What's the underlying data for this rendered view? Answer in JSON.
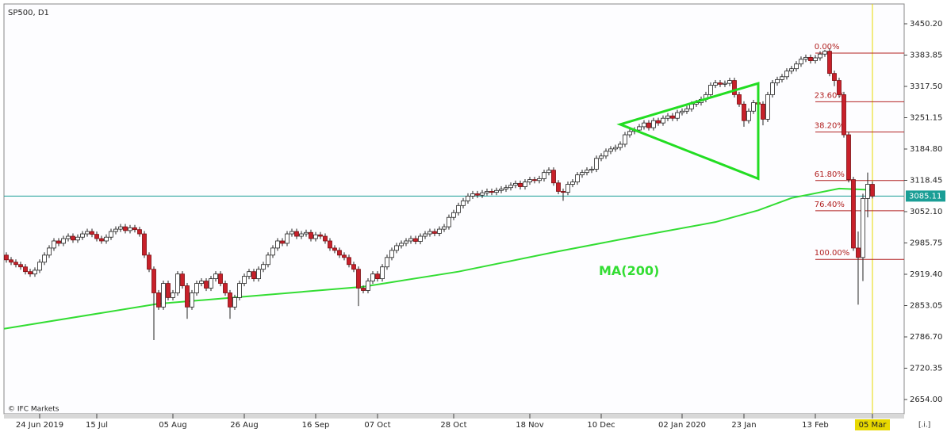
{
  "chart_data": {
    "type": "candlestick",
    "title": "SP500, D1",
    "source": "© IFC Markets",
    "corner_label": "[.i.]",
    "xlim": [
      -0.5,
      188.67
    ],
    "xticks": [
      {
        "value": 7,
        "label": "24 Jun 2019"
      },
      {
        "value": 19,
        "label": "15 Jul"
      },
      {
        "value": 35,
        "label": "05 Aug"
      },
      {
        "value": 50,
        "label": "26 Aug"
      },
      {
        "value": 65,
        "label": "16 Sep"
      },
      {
        "value": 78,
        "label": "07 Oct"
      },
      {
        "value": 94,
        "label": "28 Oct"
      },
      {
        "value": 110,
        "label": "18 Nov"
      },
      {
        "value": 125,
        "label": "10 Dec"
      },
      {
        "value": 142,
        "label": "02 Jan 2020"
      },
      {
        "value": 155,
        "label": "23 Jan"
      },
      {
        "value": 170,
        "label": "13 Feb"
      },
      {
        "value": 182,
        "label": "05 Mar"
      }
    ],
    "ylim": [
      2623.8,
      3492.2
    ],
    "yticks": [
      {
        "value": 3450.2,
        "label": "3450.20"
      },
      3383.85,
      {
        "value": 3317.5,
        "label": "3317.50"
      },
      3251.15,
      {
        "value": 3184.8,
        "label": "3184.80"
      },
      3118.45,
      {
        "value": 3052.1,
        "label": "3052.10"
      },
      2985.75,
      {
        "value": 2919.4,
        "label": "2919.40"
      },
      2853.05,
      {
        "value": 2786.7,
        "label": "2786.70"
      },
      2720.35,
      {
        "value": 2654,
        "label": "2654.00"
      }
    ],
    "open": [
      2960,
      2950,
      2945,
      2940,
      2935,
      2925,
      2920,
      2928,
      2945,
      2960,
      2975,
      2990,
      2985,
      2995,
      3000,
      2992,
      2998,
      3005,
      3010,
      3004,
      2995,
      2990,
      2998,
      3010,
      3015,
      3020,
      3012,
      3018,
      3014,
      3005,
      2960,
      2930,
      2880,
      2850,
      2900,
      2870,
      2880,
      2920,
      2895,
      2850,
      2880,
      2900,
      2905,
      2890,
      2910,
      2920,
      2900,
      2880,
      2850,
      2870,
      2900,
      2915,
      2925,
      2910,
      2930,
      2940,
      2960,
      2975,
      2990,
      2985,
      3005,
      3010,
      3000,
      3005,
      3008,
      2995,
      3003,
      3000,
      2990,
      2975,
      2970,
      2960,
      2955,
      2940,
      2930,
      2890,
      2885,
      2905,
      2920,
      2910,
      2935,
      2955,
      2970,
      2980,
      2985,
      2990,
      2995,
      2989,
      3000,
      3005,
      3010,
      3006,
      3015,
      3020,
      3040,
      3050,
      3065,
      3075,
      3085,
      3090,
      3087,
      3092,
      3095,
      3093,
      3097,
      3100,
      3103,
      3108,
      3112,
      3105,
      3115,
      3120,
      3118,
      3122,
      3135,
      3140,
      3113,
      3095,
      3093,
      3110,
      3115,
      3130,
      3135,
      3140,
      3142,
      3165,
      3170,
      3180,
      3185,
      3188,
      3195,
      3215,
      3222,
      3225,
      3232,
      3240,
      3230,
      3245,
      3240,
      3250,
      3255,
      3250,
      3262,
      3265,
      3270,
      3280,
      3283,
      3290,
      3300,
      3320,
      3325,
      3322,
      3324,
      3330,
      3300,
      3280,
      3245,
      3265,
      3283,
      3280,
      3248,
      3300,
      3325,
      3332,
      3338,
      3350,
      3355,
      3365,
      3375,
      3379,
      3372,
      3378,
      3386,
      3392,
      3345,
      3330,
      3300,
      3215,
      3120,
      2975,
      2955,
      3080,
      3110
    ],
    "high": [
      2966,
      2956,
      2951,
      2946,
      2941,
      2931,
      2934,
      2951,
      2966,
      2981,
      2996,
      2996,
      3001,
      3006,
      3006,
      3004,
      3011,
      3016,
      3016,
      3010,
      3001,
      3004,
      3016,
      3021,
      3026,
      3026,
      3024,
      3024,
      3020,
      3011,
      2966,
      2936,
      2886,
      2906,
      2906,
      2886,
      2926,
      2926,
      2901,
      2886,
      2906,
      2911,
      2911,
      2916,
      2926,
      2926,
      2906,
      2886,
      2876,
      2906,
      2921,
      2931,
      2931,
      2936,
      2946,
      2966,
      2981,
      2996,
      2996,
      3011,
      3016,
      3016,
      3011,
      3014,
      3014,
      3009,
      3009,
      3006,
      2996,
      2981,
      2976,
      2966,
      2961,
      2946,
      2936,
      2896,
      2911,
      2926,
      2926,
      2941,
      2961,
      2976,
      2986,
      2991,
      2996,
      3001,
      3001,
      3006,
      3011,
      3016,
      3016,
      3021,
      3026,
      3046,
      3056,
      3071,
      3081,
      3091,
      3096,
      3096,
      3098,
      3101,
      3101,
      3103,
      3106,
      3109,
      3114,
      3118,
      3118,
      3121,
      3126,
      3126,
      3128,
      3141,
      3146,
      3146,
      3119,
      3101,
      3116,
      3121,
      3136,
      3141,
      3146,
      3148,
      3171,
      3176,
      3186,
      3191,
      3194,
      3201,
      3221,
      3228,
      3231,
      3238,
      3246,
      3246,
      3251,
      3251,
      3256,
      3261,
      3261,
      3268,
      3271,
      3276,
      3286,
      3289,
      3296,
      3306,
      3326,
      3331,
      3331,
      3330,
      3336,
      3336,
      3306,
      3286,
      3271,
      3289,
      3289,
      3286,
      3306,
      3331,
      3338,
      3344,
      3356,
      3361,
      3371,
      3381,
      3385,
      3385,
      3384,
      3392,
      3395,
      3398,
      3351,
      3336,
      3306,
      3221,
      3126,
      3010,
      3090,
      3135,
      3116
    ],
    "low": [
      2944,
      2939,
      2934,
      2929,
      2919,
      2914,
      2914,
      2922,
      2939,
      2954,
      2969,
      2979,
      2979,
      2989,
      2986,
      2986,
      2992,
      2999,
      2998,
      2989,
      2984,
      2984,
      2992,
      3004,
      3009,
      3006,
      3006,
      3008,
      2999,
      2954,
      2924,
      2780,
      2844,
      2844,
      2864,
      2864,
      2874,
      2889,
      2825,
      2844,
      2874,
      2894,
      2884,
      2884,
      2904,
      2894,
      2874,
      2825,
      2844,
      2864,
      2894,
      2909,
      2904,
      2904,
      2924,
      2934,
      2954,
      2969,
      2979,
      2979,
      2999,
      2994,
      2994,
      2999,
      2989,
      2989,
      2994,
      2984,
      2969,
      2964,
      2954,
      2949,
      2934,
      2924,
      2852,
      2879,
      2879,
      2899,
      2904,
      2904,
      2929,
      2949,
      2964,
      2974,
      2979,
      2984,
      2983,
      2983,
      2994,
      2999,
      3000,
      3000,
      3009,
      3014,
      3034,
      3044,
      3059,
      3069,
      3079,
      3081,
      3081,
      3086,
      3087,
      3087,
      3091,
      3094,
      3097,
      3102,
      3099,
      3099,
      3109,
      3112,
      3112,
      3116,
      3129,
      3107,
      3089,
      3075,
      3087,
      3104,
      3109,
      3124,
      3129,
      3134,
      3136,
      3159,
      3164,
      3174,
      3179,
      3182,
      3189,
      3209,
      3216,
      3219,
      3226,
      3224,
      3224,
      3234,
      3234,
      3244,
      3244,
      3244,
      3256,
      3259,
      3264,
      3274,
      3277,
      3284,
      3294,
      3314,
      3316,
      3316,
      3318,
      3294,
      3274,
      3232,
      3239,
      3259,
      3274,
      3235,
      3242,
      3294,
      3319,
      3326,
      3332,
      3344,
      3349,
      3359,
      3369,
      3366,
      3366,
      3372,
      3380,
      3339,
      3318,
      3294,
      3209,
      3114,
      2969,
      2855,
      2905,
      3040,
      3080
    ],
    "close": [
      2950,
      2945,
      2940,
      2935,
      2925,
      2920,
      2928,
      2945,
      2960,
      2975,
      2990,
      2985,
      2995,
      3000,
      2992,
      2998,
      3005,
      3010,
      3004,
      2995,
      2990,
      2998,
      3010,
      3015,
      3020,
      3012,
      3018,
      3014,
      3005,
      2960,
      2930,
      2880,
      2850,
      2900,
      2870,
      2880,
      2920,
      2895,
      2850,
      2880,
      2900,
      2905,
      2890,
      2910,
      2920,
      2900,
      2880,
      2850,
      2870,
      2900,
      2915,
      2925,
      2910,
      2930,
      2940,
      2960,
      2975,
      2990,
      2985,
      3005,
      3010,
      3000,
      3005,
      3008,
      2995,
      3003,
      3000,
      2990,
      2975,
      2970,
      2960,
      2955,
      2940,
      2930,
      2890,
      2885,
      2905,
      2920,
      2910,
      2935,
      2955,
      2970,
      2980,
      2985,
      2990,
      2995,
      2989,
      3000,
      3005,
      3010,
      3006,
      3015,
      3020,
      3040,
      3050,
      3065,
      3075,
      3085,
      3090,
      3087,
      3092,
      3095,
      3093,
      3097,
      3100,
      3103,
      3108,
      3112,
      3105,
      3115,
      3120,
      3118,
      3122,
      3135,
      3140,
      3113,
      3095,
      3093,
      3110,
      3115,
      3130,
      3135,
      3140,
      3142,
      3165,
      3170,
      3180,
      3185,
      3188,
      3195,
      3215,
      3222,
      3225,
      3232,
      3240,
      3230,
      3245,
      3240,
      3250,
      3255,
      3250,
      3262,
      3265,
      3270,
      3280,
      3283,
      3290,
      3300,
      3320,
      3325,
      3322,
      3324,
      3330,
      3300,
      3280,
      3245,
      3265,
      3283,
      3280,
      3248,
      3300,
      3325,
      3332,
      3338,
      3350,
      3355,
      3365,
      3375,
      3379,
      3372,
      3378,
      3386,
      3392,
      3345,
      3330,
      3300,
      3215,
      3120,
      2975,
      2955,
      3080,
      3110,
      3085.11
    ],
    "up_color": "#ffffff",
    "down_color": "#c8202a",
    "ma": {
      "name": "MA(200)",
      "color": "#33dd33",
      "x": [
        -0.5,
        32,
        50,
        75,
        95,
        115,
        130,
        149,
        158,
        165,
        175,
        182
      ],
      "values": [
        2804,
        2857,
        2872,
        2893,
        2925,
        2966,
        2995,
        3030,
        3055,
        3081,
        3101,
        3098
      ]
    },
    "triangle": {
      "color": "#22dd22",
      "x": [
        129,
        158,
        158
      ],
      "values": [
        3237,
        3324,
        3122
      ]
    },
    "fibonacci": {
      "color": "#b22222",
      "levels": [
        {
          "label": "0.00%",
          "value": 3388
        },
        {
          "label": "23.60%",
          "value": 3285
        },
        {
          "label": "38.20%",
          "value": 3221
        },
        {
          "label": "61.80%",
          "value": 3118
        },
        {
          "label": "76.40%",
          "value": 3054
        },
        {
          "label": "100.00%",
          "value": 2951
        }
      ]
    },
    "last_price": {
      "value": 3085.11,
      "color": "#1a9e96"
    },
    "current_color": "#e8d800"
  }
}
